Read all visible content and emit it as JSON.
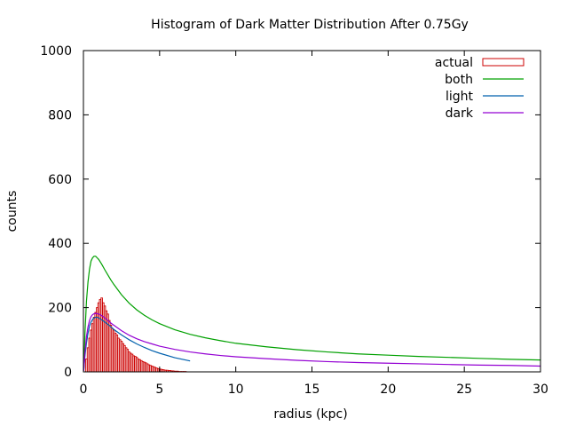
{
  "chart_data": {
    "type": "histogram",
    "title": "Histogram of Dark Matter Distribution After 0.75Gy",
    "xlabel": "radius (kpc)",
    "ylabel": "counts",
    "xlim": [
      0,
      30
    ],
    "ylim": [
      0,
      1000
    ],
    "xticks": [
      0,
      5,
      10,
      15,
      20,
      25,
      30
    ],
    "yticks": [
      0,
      200,
      400,
      600,
      800,
      1000
    ],
    "grid": false,
    "legend_position": "top-right",
    "colors": {
      "actual": "#cc0000",
      "both": "#00a000",
      "light": "#0060ad",
      "dark": "#9400d3"
    },
    "bins": {
      "width": 0.1,
      "x": [
        0.2,
        0.3,
        0.4,
        0.5,
        0.6,
        0.7,
        0.8,
        0.9,
        1.0,
        1.1,
        1.2,
        1.3,
        1.4,
        1.5,
        1.6,
        1.7,
        1.8,
        1.9,
        2.0,
        2.1,
        2.2,
        2.3,
        2.4,
        2.5,
        2.6,
        2.7,
        2.8,
        2.9,
        3.0,
        3.1,
        3.2,
        3.3,
        3.4,
        3.5,
        3.6,
        3.7,
        3.8,
        3.9,
        4.0,
        4.1,
        4.2,
        4.3,
        4.4,
        4.5,
        4.6,
        4.7,
        4.8,
        4.9,
        5.0,
        5.1,
        5.2,
        5.3,
        5.4,
        5.5,
        5.6,
        5.7,
        5.8,
        5.9,
        6.0,
        6.1,
        6.2,
        6.3,
        6.4,
        6.5,
        6.6,
        6.7
      ],
      "counts": [
        40,
        75,
        105,
        130,
        150,
        170,
        185,
        200,
        215,
        225,
        230,
        215,
        205,
        190,
        180,
        160,
        145,
        135,
        130,
        120,
        115,
        105,
        100,
        95,
        88,
        82,
        75,
        70,
        62,
        58,
        55,
        50,
        48,
        45,
        40,
        38,
        35,
        32,
        30,
        28,
        25,
        22,
        20,
        18,
        16,
        14,
        12,
        10,
        9,
        8,
        7,
        6,
        5,
        5,
        4,
        4,
        3,
        3,
        2,
        2,
        2,
        1,
        1,
        1,
        1,
        1
      ]
    },
    "series": [
      {
        "name": "both",
        "x": [
          0.02,
          0.1,
          0.2,
          0.3,
          0.4,
          0.5,
          0.6,
          0.7,
          0.8,
          0.9,
          1.0,
          1.2,
          1.4,
          1.6,
          1.8,
          2.0,
          2.5,
          3.0,
          3.5,
          4.0,
          4.5,
          5.0,
          6.0,
          7.0,
          8.0,
          9.0,
          10.0,
          12.0,
          14.0,
          16.0,
          18.0,
          20.0,
          22.0,
          24.0,
          26.0,
          28.0,
          30.0
        ],
        "y": [
          5,
          120,
          220,
          280,
          320,
          345,
          355,
          360,
          360,
          355,
          350,
          335,
          318,
          302,
          286,
          272,
          240,
          214,
          193,
          176,
          162,
          150,
          131,
          117,
          106,
          97,
          89,
          78,
          69,
          62,
          56,
          52,
          48,
          45,
          42,
          39,
          37
        ]
      },
      {
        "name": "light",
        "x": [
          0.02,
          0.1,
          0.2,
          0.3,
          0.4,
          0.5,
          0.6,
          0.7,
          0.8,
          0.9,
          1.0,
          1.2,
          1.4,
          1.6,
          1.8,
          2.0,
          2.5,
          3.0,
          3.5,
          4.0,
          4.5,
          5.0,
          6.0,
          7.0
        ],
        "y": [
          5,
          50,
          90,
          120,
          142,
          155,
          163,
          168,
          170,
          170,
          168,
          162,
          155,
          148,
          140,
          132,
          115,
          100,
          87,
          76,
          66,
          58,
          44,
          34
        ]
      },
      {
        "name": "dark",
        "x": [
          0.02,
          0.1,
          0.2,
          0.3,
          0.4,
          0.5,
          0.6,
          0.7,
          0.8,
          0.9,
          1.0,
          1.2,
          1.4,
          1.6,
          1.8,
          2.0,
          2.5,
          3.0,
          3.5,
          4.0,
          4.5,
          5.0,
          6.0,
          7.0,
          8.0,
          9.0,
          10.0,
          12.0,
          14.0,
          16.0,
          18.0,
          20.0,
          22.0,
          24.0,
          26.0,
          28.0,
          30.0
        ],
        "y": [
          3,
          60,
          110,
          140,
          160,
          172,
          178,
          181,
          182,
          181,
          180,
          175,
          168,
          160,
          152,
          145,
          128,
          114,
          103,
          94,
          87,
          80,
          70,
          62,
          56,
          51,
          47,
          41,
          36,
          32,
          29,
          27,
          25,
          23,
          21,
          20,
          18
        ]
      }
    ],
    "legend": [
      "actual",
      "both",
      "light",
      "dark"
    ]
  }
}
